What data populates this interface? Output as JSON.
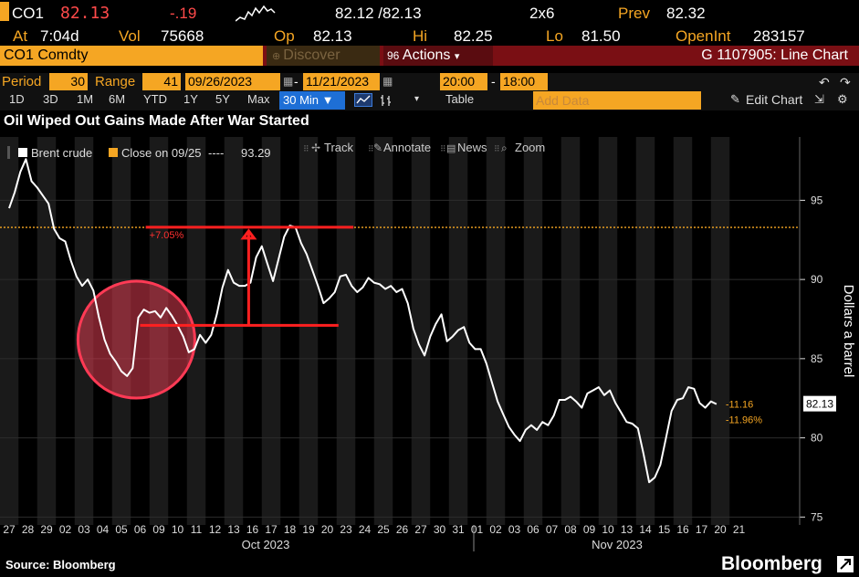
{
  "quote": {
    "ticker": "CO1",
    "last": "82.13",
    "change": "-.19",
    "bid_ask": "82.12 /82.13",
    "size": "2x6",
    "prev_label": "Prev",
    "prev": "82.32",
    "at_label": "At",
    "at_time": "7:04d",
    "vol_label": "Vol",
    "vol": "75668",
    "op_label": "Op",
    "op": "82.13",
    "hi_label": "Hi",
    "hi": "82.25",
    "lo_label": "Lo",
    "lo": "81.50",
    "oi_label": "OpenInt",
    "oi": "283157"
  },
  "security_bar": {
    "security": "CO1 Comdty",
    "discover": "Discover",
    "actions_num": "96",
    "actions": "Actions",
    "chart_title": "G 1107905: Line Chart"
  },
  "controls": {
    "period_label": "Period",
    "period_value": "30",
    "range_label": "Range",
    "range_value": "41",
    "start_date": "09/26/2023",
    "end_date": "11/21/2023",
    "start_time": "20:00",
    "end_time": "18:00",
    "ranges": [
      "1D",
      "3D",
      "1M",
      "6M",
      "YTD",
      "1Y",
      "5Y",
      "Max"
    ],
    "interval": "30 Min",
    "table": "Table",
    "add_data_placeholder": "Add Data",
    "edit_chart": "Edit Chart"
  },
  "headline": "Oil Wiped Out Gains Made After War Started",
  "legend": {
    "series_name": "Brent crude",
    "close_label": "Close on 09/25",
    "close_dashes": "----",
    "close_value": "93.29",
    "track": "Track",
    "annotate": "Annotate",
    "news": "News",
    "zoom": "Zoom"
  },
  "footer": {
    "source": "Source: Bloomberg",
    "brand": "Bloomberg"
  },
  "colors": {
    "accent": "#f5a623",
    "annotation_red": "#ff2020",
    "negative": "#ff4a4a",
    "series": "#ffffff",
    "background": "#000000"
  },
  "chart_data": {
    "type": "line",
    "ylabel": "Dollars a barrel",
    "ylim": [
      74.5,
      99
    ],
    "yticks": [
      75,
      80,
      85,
      90,
      95
    ],
    "x_ticks": [
      "27",
      "28",
      "29",
      "02",
      "03",
      "04",
      "05",
      "06",
      "09",
      "10",
      "11",
      "12",
      "13",
      "16",
      "17",
      "18",
      "19",
      "20",
      "23",
      "24",
      "25",
      "26",
      "27",
      "30",
      "31",
      "01",
      "02",
      "03",
      "06",
      "07",
      "08",
      "09",
      "10",
      "13",
      "14",
      "15",
      "16",
      "17",
      "20",
      "21"
    ],
    "month_labels": [
      "Oct 2023",
      "Nov 2023"
    ],
    "reference_line": {
      "label": "Close on 09/25",
      "value": 93.29
    },
    "last_value": "82.13",
    "end_labels": [
      "-11.16",
      "-11.96%"
    ],
    "annotation_pct": "+7.05%",
    "annotation_from": 87.1,
    "annotation_to": 93.3,
    "series": [
      {
        "name": "Brent crude",
        "points": [
          [
            0,
            94.5
          ],
          [
            0.3,
            95.5
          ],
          [
            0.6,
            96.8
          ],
          [
            0.9,
            97.6
          ],
          [
            1.2,
            96.2
          ],
          [
            1.5,
            95.8
          ],
          [
            1.8,
            95.3
          ],
          [
            2.1,
            94.8
          ],
          [
            2.4,
            93.2
          ],
          [
            2.7,
            92.6
          ],
          [
            3.0,
            92.4
          ],
          [
            3.3,
            91.2
          ],
          [
            3.6,
            90.2
          ],
          [
            3.9,
            89.6
          ],
          [
            4.2,
            90.0
          ],
          [
            4.5,
            89.3
          ],
          [
            4.8,
            87.6
          ],
          [
            5.1,
            86.2
          ],
          [
            5.4,
            85.3
          ],
          [
            5.7,
            84.8
          ],
          [
            6.0,
            84.2
          ],
          [
            6.3,
            83.9
          ],
          [
            6.6,
            84.4
          ],
          [
            6.9,
            87.6
          ],
          [
            7.2,
            88.1
          ],
          [
            7.5,
            87.9
          ],
          [
            7.8,
            88.0
          ],
          [
            8.1,
            87.6
          ],
          [
            8.4,
            88.2
          ],
          [
            8.7,
            87.7
          ],
          [
            9.0,
            87.1
          ],
          [
            9.3,
            86.4
          ],
          [
            9.6,
            85.4
          ],
          [
            9.9,
            85.6
          ],
          [
            10.2,
            86.5
          ],
          [
            10.5,
            86.0
          ],
          [
            10.8,
            86.5
          ],
          [
            11.1,
            87.8
          ],
          [
            11.4,
            89.5
          ],
          [
            11.7,
            90.6
          ],
          [
            12.0,
            89.8
          ],
          [
            12.3,
            89.6
          ],
          [
            12.6,
            89.6
          ],
          [
            12.9,
            89.8
          ],
          [
            13.2,
            91.4
          ],
          [
            13.5,
            92.1
          ],
          [
            13.8,
            91.0
          ],
          [
            14.1,
            89.9
          ],
          [
            14.4,
            91.3
          ],
          [
            14.7,
            92.7
          ],
          [
            15.0,
            93.4
          ],
          [
            15.3,
            93.3
          ],
          [
            15.6,
            92.3
          ],
          [
            15.9,
            91.6
          ],
          [
            16.2,
            90.6
          ],
          [
            16.5,
            89.6
          ],
          [
            16.8,
            88.5
          ],
          [
            17.1,
            88.8
          ],
          [
            17.4,
            89.2
          ],
          [
            17.7,
            90.2
          ],
          [
            18.0,
            90.3
          ],
          [
            18.3,
            89.6
          ],
          [
            18.6,
            89.2
          ],
          [
            18.9,
            89.5
          ],
          [
            19.2,
            90.1
          ],
          [
            19.5,
            89.8
          ],
          [
            19.8,
            89.7
          ],
          [
            20.1,
            89.4
          ],
          [
            20.4,
            89.6
          ],
          [
            20.7,
            89.2
          ],
          [
            21.0,
            89.4
          ],
          [
            21.3,
            88.5
          ],
          [
            21.6,
            86.9
          ],
          [
            21.9,
            85.9
          ],
          [
            22.2,
            85.2
          ],
          [
            22.5,
            86.4
          ],
          [
            22.8,
            87.2
          ],
          [
            23.1,
            87.8
          ],
          [
            23.4,
            86.1
          ],
          [
            23.7,
            86.4
          ],
          [
            24.0,
            86.8
          ],
          [
            24.3,
            87.0
          ],
          [
            24.6,
            86.0
          ],
          [
            24.9,
            85.6
          ],
          [
            25.2,
            85.6
          ],
          [
            25.5,
            84.7
          ],
          [
            25.8,
            83.5
          ],
          [
            26.1,
            82.3
          ],
          [
            26.4,
            81.5
          ],
          [
            26.7,
            80.7
          ],
          [
            27.0,
            80.2
          ],
          [
            27.3,
            79.8
          ],
          [
            27.6,
            80.5
          ],
          [
            27.9,
            80.8
          ],
          [
            28.2,
            80.5
          ],
          [
            28.5,
            81.0
          ],
          [
            28.8,
            80.8
          ],
          [
            29.1,
            81.4
          ],
          [
            29.4,
            82.4
          ],
          [
            29.7,
            82.4
          ],
          [
            30.0,
            82.6
          ],
          [
            30.3,
            82.3
          ],
          [
            30.6,
            81.9
          ],
          [
            30.9,
            82.8
          ],
          [
            31.2,
            83.0
          ],
          [
            31.5,
            83.2
          ],
          [
            31.8,
            82.7
          ],
          [
            32.1,
            83.0
          ],
          [
            32.4,
            82.2
          ],
          [
            32.7,
            81.6
          ],
          [
            33.0,
            81.0
          ],
          [
            33.3,
            80.9
          ],
          [
            33.6,
            80.6
          ],
          [
            33.9,
            79.0
          ],
          [
            34.2,
            77.2
          ],
          [
            34.5,
            77.5
          ],
          [
            34.8,
            78.3
          ],
          [
            35.1,
            80.0
          ],
          [
            35.4,
            81.7
          ],
          [
            35.7,
            82.4
          ],
          [
            36.0,
            82.5
          ],
          [
            36.3,
            83.2
          ],
          [
            36.6,
            83.1
          ],
          [
            36.9,
            82.2
          ],
          [
            37.2,
            81.9
          ],
          [
            37.5,
            82.3
          ],
          [
            37.8,
            82.13
          ]
        ]
      }
    ]
  }
}
